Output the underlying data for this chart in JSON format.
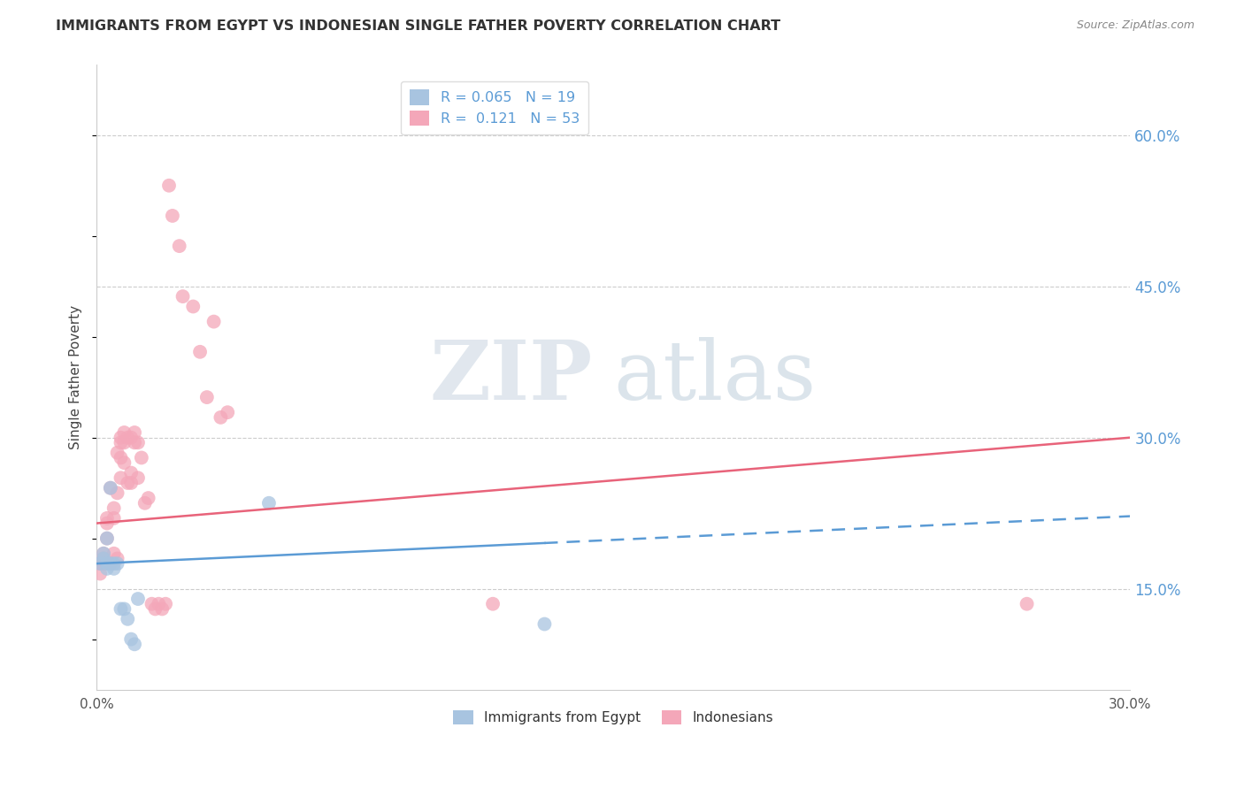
{
  "title": "IMMIGRANTS FROM EGYPT VS INDONESIAN SINGLE FATHER POVERTY CORRELATION CHART",
  "source": "Source: ZipAtlas.com",
  "ylabel": "Single Father Poverty",
  "ytick_labels": [
    "15.0%",
    "30.0%",
    "45.0%",
    "60.0%"
  ],
  "ytick_values": [
    0.15,
    0.3,
    0.45,
    0.6
  ],
  "xlim": [
    0.0,
    0.3
  ],
  "ylim": [
    0.05,
    0.67
  ],
  "legend_label1": "R = 0.065   N = 19",
  "legend_label2": "R =  0.121   N = 53",
  "legend_label_bottom1": "Immigrants from Egypt",
  "legend_label_bottom2": "Indonesians",
  "egypt_color": "#a8c4e0",
  "indonesia_color": "#f4a7b9",
  "egypt_line_color": "#5b9bd5",
  "indonesia_line_color": "#e8637a",
  "egypt_x": [
    0.001,
    0.002,
    0.002,
    0.003,
    0.003,
    0.003,
    0.004,
    0.004,
    0.005,
    0.005,
    0.006,
    0.007,
    0.008,
    0.009,
    0.01,
    0.011,
    0.012,
    0.05,
    0.13
  ],
  "egypt_y": [
    0.175,
    0.185,
    0.18,
    0.2,
    0.175,
    0.17,
    0.25,
    0.175,
    0.175,
    0.17,
    0.175,
    0.13,
    0.13,
    0.12,
    0.1,
    0.095,
    0.14,
    0.235,
    0.115
  ],
  "indonesia_x": [
    0.001,
    0.001,
    0.002,
    0.002,
    0.002,
    0.003,
    0.003,
    0.003,
    0.003,
    0.004,
    0.004,
    0.005,
    0.005,
    0.005,
    0.006,
    0.006,
    0.006,
    0.007,
    0.007,
    0.007,
    0.007,
    0.008,
    0.008,
    0.008,
    0.009,
    0.009,
    0.01,
    0.01,
    0.01,
    0.011,
    0.011,
    0.012,
    0.012,
    0.013,
    0.014,
    0.015,
    0.016,
    0.017,
    0.018,
    0.019,
    0.02,
    0.021,
    0.022,
    0.024,
    0.025,
    0.028,
    0.03,
    0.032,
    0.034,
    0.036,
    0.038,
    0.115,
    0.27
  ],
  "indonesia_y": [
    0.175,
    0.165,
    0.175,
    0.18,
    0.185,
    0.175,
    0.2,
    0.215,
    0.22,
    0.175,
    0.25,
    0.185,
    0.22,
    0.23,
    0.18,
    0.245,
    0.285,
    0.26,
    0.28,
    0.3,
    0.295,
    0.305,
    0.275,
    0.295,
    0.255,
    0.3,
    0.255,
    0.265,
    0.3,
    0.295,
    0.305,
    0.26,
    0.295,
    0.28,
    0.235,
    0.24,
    0.135,
    0.13,
    0.135,
    0.13,
    0.135,
    0.55,
    0.52,
    0.49,
    0.44,
    0.43,
    0.385,
    0.34,
    0.415,
    0.32,
    0.325,
    0.135,
    0.135
  ],
  "watermark_zip": "ZIP",
  "watermark_atlas": "atlas",
  "background_color": "#ffffff",
  "egypt_line_x_solid_end": 0.13,
  "egypt_line_start_y": 0.175,
  "egypt_line_end_y": 0.222,
  "indonesia_line_start_y": 0.215,
  "indonesia_line_end_y": 0.3
}
